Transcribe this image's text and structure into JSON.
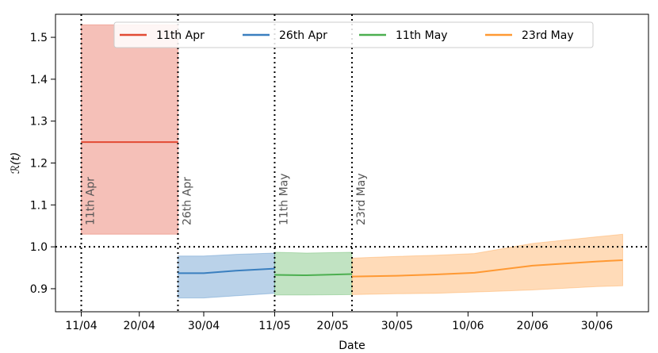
{
  "chart_data": {
    "type": "line",
    "xlabel": "Date",
    "ylabel": "ℛ(t)",
    "x_tick_labels": [
      "11/04",
      "20/04",
      "30/04",
      "11/05",
      "20/05",
      "30/05",
      "10/06",
      "20/06",
      "30/06"
    ],
    "x_ticks": [
      "2020-04-11",
      "2020-04-20",
      "2020-04-30",
      "2020-05-11",
      "2020-05-20",
      "2020-05-30",
      "2020-06-10",
      "2020-06-20",
      "2020-06-30"
    ],
    "xlim": [
      "2020-04-07",
      "2020-07-08"
    ],
    "y_tick_labels": [
      "0.9",
      "1.0",
      "1.1",
      "1.2",
      "1.3",
      "1.4",
      "1.5"
    ],
    "y_ticks": [
      0.9,
      1.0,
      1.1,
      1.2,
      1.3,
      1.4,
      1.5
    ],
    "ylim": [
      0.845,
      1.555
    ],
    "reference_line": 1.0,
    "legend_position": "top",
    "series": [
      {
        "name": "11th Apr",
        "color": "#e24a33",
        "x": [
          "2020-04-11",
          "2020-04-26"
        ],
        "values": [
          1.25,
          1.25
        ],
        "lower": [
          1.03,
          1.03
        ],
        "upper": [
          1.53,
          1.53
        ]
      },
      {
        "name": "26th Apr",
        "color": "#3a7fbf",
        "x": [
          "2020-04-26",
          "2020-04-30",
          "2020-05-05",
          "2020-05-11"
        ],
        "values": [
          0.937,
          0.937,
          0.943,
          0.948
        ],
        "lower": [
          0.878,
          0.878,
          0.883,
          0.889
        ],
        "upper": [
          0.978,
          0.978,
          0.982,
          0.985
        ]
      },
      {
        "name": "11th May",
        "color": "#4caf50",
        "x": [
          "2020-05-11",
          "2020-05-16",
          "2020-05-23"
        ],
        "values": [
          0.933,
          0.932,
          0.935
        ],
        "lower": [
          0.885,
          0.885,
          0.886
        ],
        "upper": [
          0.987,
          0.985,
          0.987
        ]
      },
      {
        "name": "23rd May",
        "color": "#ff9933",
        "x": [
          "2020-05-23",
          "2020-05-30",
          "2020-06-05",
          "2020-06-11",
          "2020-06-20",
          "2020-06-30",
          "2020-07-04"
        ],
        "values": [
          0.929,
          0.931,
          0.934,
          0.938,
          0.955,
          0.965,
          0.968
        ],
        "lower": [
          0.886,
          0.888,
          0.889,
          0.892,
          0.897,
          0.905,
          0.907
        ],
        "upper": [
          0.973,
          0.977,
          0.98,
          0.984,
          1.008,
          1.024,
          1.03
        ]
      }
    ],
    "vlines": [
      {
        "date": "2020-04-11",
        "label": "11th Apr"
      },
      {
        "date": "2020-04-26",
        "label": "26th Apr"
      },
      {
        "date": "2020-05-11",
        "label": "11th May"
      },
      {
        "date": "2020-05-23",
        "label": "23rd May"
      }
    ]
  }
}
